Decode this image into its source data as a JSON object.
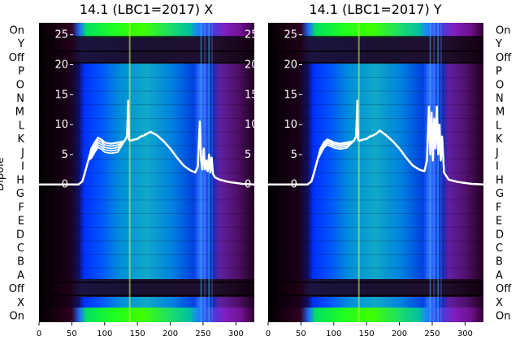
{
  "chart_data": [
    {
      "type": "heatmap",
      "title": "14.1 (LBC1=2017) X",
      "ylabel": "Dipole",
      "xlim": [
        0,
        328
      ],
      "xticks": [
        0,
        50,
        100,
        150,
        200,
        250,
        300
      ],
      "row_labels_top_to_bottom": [
        "On",
        "Y",
        "Off",
        "P",
        "O",
        "N",
        "M",
        "L",
        "K",
        "J",
        "I",
        "H",
        "G",
        "F",
        "E",
        "D",
        "C",
        "B",
        "A",
        "Off",
        "X",
        "On"
      ],
      "overlay": {
        "type": "line",
        "ylim": [
          -23,
          27
        ],
        "yticks": [
          0,
          5,
          10,
          15,
          20,
          25
        ],
        "color": "#ffffff",
        "x": [
          0,
          60,
          66,
          70,
          75,
          80,
          85,
          90,
          95,
          100,
          110,
          120,
          130,
          134,
          136,
          137,
          139,
          142,
          145,
          150,
          155,
          160,
          165,
          170,
          175,
          180,
          190,
          200,
          210,
          220,
          230,
          238,
          242,
          245,
          247,
          249,
          251,
          253,
          255,
          257,
          259,
          261,
          263,
          265,
          268,
          275,
          290,
          310,
          328
        ],
        "y": [
          0,
          0,
          0.5,
          2,
          4,
          6,
          7,
          7.8,
          7.5,
          7,
          6.8,
          7,
          7.2,
          8,
          14,
          7.5,
          7.3,
          7.4,
          7.5,
          7.6,
          8,
          8.2,
          8.5,
          8.8,
          8.5,
          8.2,
          7.2,
          6,
          4.5,
          3.2,
          2.4,
          2,
          3,
          10.5,
          4,
          2.5,
          6,
          2.5,
          4,
          2.2,
          5,
          2,
          4.5,
          1.8,
          1.2,
          0.8,
          0.4,
          0.1,
          0
        ]
      }
    },
    {
      "type": "heatmap",
      "title": "14.1 (LBC1=2017) Y",
      "xlim": [
        0,
        328
      ],
      "xticks": [
        0,
        50,
        100,
        150,
        200,
        250,
        300
      ],
      "row_labels_top_to_bottom": [
        "On",
        "Y",
        "Off",
        "P",
        "O",
        "N",
        "M",
        "L",
        "K",
        "J",
        "I",
        "H",
        "G",
        "F",
        "E",
        "D",
        "C",
        "B",
        "A",
        "Off",
        "X",
        "On"
      ],
      "overlay": {
        "type": "line",
        "ylim": [
          -23,
          27
        ],
        "yticks": [
          0,
          5,
          10,
          15,
          20,
          25
        ],
        "color": "#ffffff",
        "x": [
          0,
          60,
          66,
          70,
          75,
          80,
          85,
          90,
          95,
          100,
          110,
          120,
          130,
          134,
          136,
          137,
          139,
          142,
          145,
          150,
          155,
          160,
          165,
          170,
          175,
          180,
          190,
          200,
          210,
          220,
          230,
          238,
          242,
          245,
          247,
          249,
          251,
          253,
          255,
          257,
          259,
          261,
          263,
          265,
          268,
          275,
          290,
          310,
          328
        ],
        "y": [
          0,
          0,
          0.5,
          2,
          4,
          6,
          7,
          7.5,
          7.3,
          7,
          6.8,
          7,
          7.2,
          8,
          14,
          7.5,
          7.3,
          7.4,
          7.5,
          7.6,
          8,
          8.2,
          8.5,
          9,
          8.6,
          8.2,
          7.2,
          6,
          4.5,
          3.2,
          2.5,
          2.2,
          4,
          13,
          5,
          12,
          4,
          11,
          6,
          13,
          5,
          10,
          4,
          8,
          2,
          0.8,
          0.4,
          0.1,
          0
        ]
      }
    }
  ]
}
